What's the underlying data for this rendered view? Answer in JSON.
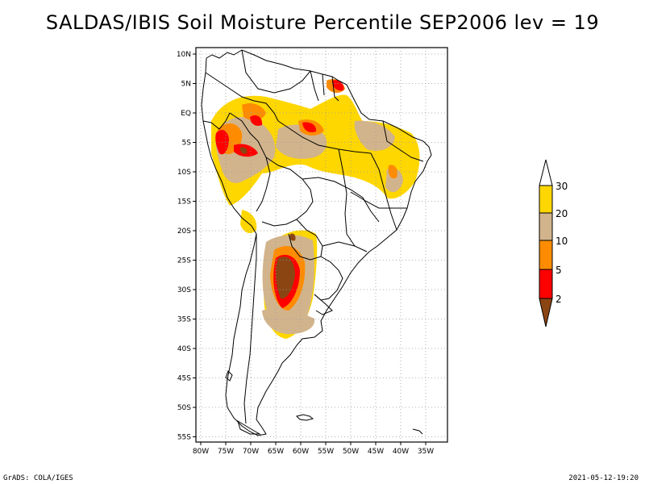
{
  "title": "SALDAS/IBIS Soil Moisture Percentile SEP2006 lev = 19",
  "map": {
    "lat_ticks": [
      "10N",
      "5N",
      "EQ",
      "5S",
      "10S",
      "15S",
      "20S",
      "25S",
      "30S",
      "35S",
      "40S",
      "45S",
      "50S",
      "55S"
    ],
    "lon_ticks": [
      "80W",
      "75W",
      "70W",
      "65W",
      "60W",
      "55W",
      "50W",
      "45W",
      "40W",
      "35W"
    ],
    "lat_values": [
      10,
      5,
      0,
      -5,
      -10,
      -15,
      -20,
      -25,
      -30,
      -35,
      -40,
      -45,
      -50,
      -55
    ],
    "lon_values": [
      -80,
      -75,
      -70,
      -65,
      -60,
      -55,
      -50,
      -45,
      -40,
      -35
    ]
  },
  "legend": {
    "labels": [
      "30",
      "20",
      "10",
      "5",
      "2"
    ],
    "colors": {
      "above30": "#ffffff",
      "c20_30": "#ffd700",
      "c10_20": "#d2b48c",
      "c5_10": "#ff8c00",
      "c2_5": "#ff0000",
      "below2": "#8b4513"
    }
  },
  "footer": {
    "left": "GrADS: COLA/IGES",
    "right": "2021-05-12-19:20"
  }
}
